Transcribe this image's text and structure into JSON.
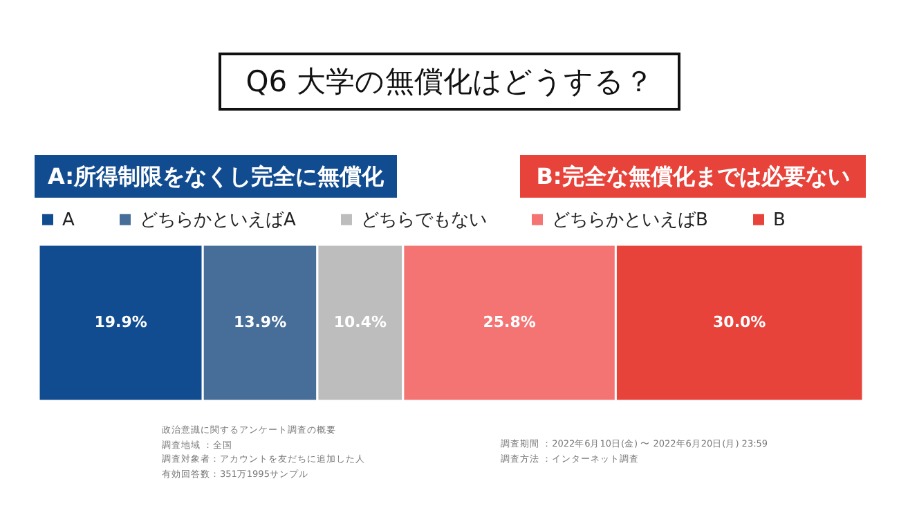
{
  "chart_data": {
    "type": "bar",
    "orientation": "horizontal",
    "stacked": true,
    "title": "Q6 大学の無償化はどうする？",
    "annotations": [
      "A:所得制限をなくし完全に無償化",
      "B:完全な無償化までは必要ない",
      "政治意識に関するアンケート調査の概要",
      "調査地域 ：全国",
      "調査対象者：アカウントを友だちに追加した人",
      "有効回答数：351万1995サンプル",
      "調査期間 ：2022年6月10日(金) 〜 2022年6月20日(月) 23:59",
      "調査方法 ：インターネット調査"
    ],
    "categories": [
      null
    ],
    "series": [
      {
        "name": "A",
        "color": "#124c90",
        "values": [
          19.9
        ],
        "value_labels": [
          "19.9%"
        ]
      },
      {
        "name": "どちらかといえばA",
        "color": "#466e98",
        "values": [
          13.9
        ],
        "value_labels": [
          "13.9%"
        ]
      },
      {
        "name": "どちらでもない",
        "color": "#bdbdbd",
        "values": [
          10.4
        ],
        "value_labels": [
          "10.4%"
        ]
      },
      {
        "name": "どちらかといえばB",
        "color": "#f47473",
        "values": [
          25.8
        ],
        "value_labels": [
          "25.8%"
        ]
      },
      {
        "name": "B",
        "color": "#e8433a",
        "values": [
          30.0
        ],
        "value_labels": [
          "30.0%"
        ]
      }
    ],
    "legend": "top",
    "tick_labels": false,
    "grid": false
  }
}
